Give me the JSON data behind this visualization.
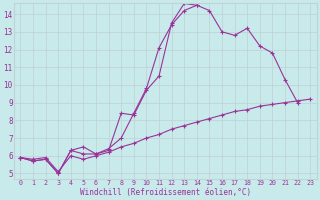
{
  "xlabel": "Windchill (Refroidissement éolien,°C)",
  "bg_color": "#c8eaea",
  "grid_color": "#c0d4d8",
  "line_color": "#993399",
  "xmin": 0,
  "xmax": 23,
  "ymin": 5,
  "ymax": 14,
  "yticks": [
    5,
    6,
    7,
    8,
    9,
    10,
    11,
    12,
    13,
    14
  ],
  "xticks": [
    0,
    1,
    2,
    3,
    4,
    5,
    6,
    7,
    8,
    9,
    10,
    11,
    12,
    13,
    14,
    15,
    16,
    17,
    18,
    19,
    20,
    21,
    22,
    23
  ],
  "line1_x": [
    0,
    1,
    2,
    3,
    4,
    5,
    6,
    7,
    8,
    9,
    10,
    11,
    12,
    13,
    14,
    15,
    16,
    17,
    18,
    19,
    20,
    21,
    22
  ],
  "line1_y": [
    5.9,
    5.7,
    5.8,
    5.0,
    6.3,
    6.5,
    6.1,
    6.4,
    7.0,
    8.4,
    9.8,
    12.1,
    13.4,
    14.2,
    14.5,
    14.2,
    13.0,
    12.8,
    13.2,
    12.2,
    11.8,
    10.3,
    9.0
  ],
  "line2_x": [
    0,
    1,
    2,
    3,
    4,
    5,
    6,
    7,
    8,
    9,
    10,
    11,
    12,
    13,
    14
  ],
  "line2_y": [
    5.9,
    5.7,
    5.8,
    5.0,
    6.3,
    6.1,
    6.1,
    6.3,
    8.4,
    8.3,
    9.7,
    10.5,
    13.5,
    14.6,
    14.5
  ],
  "line3_x": [
    0,
    1,
    2,
    3,
    4,
    5,
    6,
    7,
    8,
    9,
    10,
    11,
    12,
    13,
    14,
    15,
    16,
    17,
    18,
    19,
    20,
    21,
    22,
    23
  ],
  "line3_y": [
    5.9,
    5.8,
    5.9,
    5.1,
    6.0,
    5.8,
    6.0,
    6.2,
    6.5,
    6.7,
    7.0,
    7.2,
    7.5,
    7.7,
    7.9,
    8.1,
    8.3,
    8.5,
    8.6,
    8.8,
    8.9,
    9.0,
    9.1,
    9.2
  ]
}
